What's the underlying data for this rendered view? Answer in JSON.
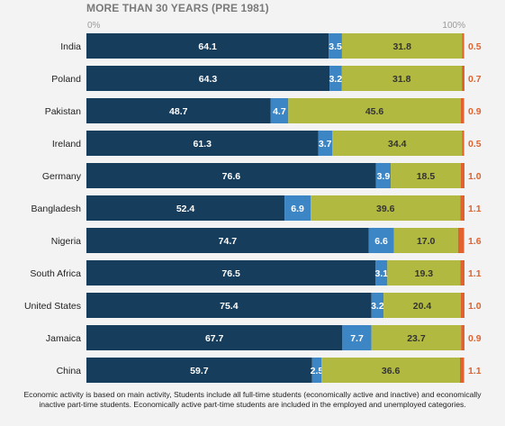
{
  "chart_data": {
    "type": "bar",
    "stacked": true,
    "orientation": "horizontal",
    "title": "MORE THAN 30 YEARS (PRE 1981)",
    "axis_min_label": "0%",
    "axis_max_label": "100%",
    "xlim": [
      0,
      100
    ],
    "legend": "none",
    "categories": [
      "India",
      "Poland",
      "Pakistan",
      "Ireland",
      "Germany",
      "Bangladesh",
      "Nigeria",
      "South Africa",
      "United States",
      "Jamaica",
      "China"
    ],
    "series": [
      {
        "color": "#173d5c",
        "label_color": "#ffffff",
        "values": [
          64.1,
          64.3,
          48.7,
          61.3,
          76.6,
          52.4,
          74.7,
          76.5,
          75.4,
          67.7,
          59.7
        ],
        "labels": [
          "64.1",
          "64.3",
          "48.7",
          "61.3",
          "76.6",
          "52.4",
          "74.7",
          "76.5",
          "75.4",
          "67.7",
          "59.7"
        ]
      },
      {
        "color": "#3d86c6",
        "label_color": "#ffffff",
        "values": [
          3.5,
          3.2,
          4.7,
          3.7,
          3.9,
          6.9,
          6.6,
          3.1,
          3.2,
          7.7,
          2.5
        ],
        "labels": [
          "3.5",
          "3.2",
          "4.7",
          "3.7",
          "3.9",
          "6.9",
          "6.6",
          "3.1",
          "3.2",
          "7.7",
          "2.5"
        ]
      },
      {
        "color": "#b1b940",
        "label_color": "#333333",
        "values": [
          31.8,
          31.8,
          45.6,
          34.4,
          18.5,
          39.6,
          17.0,
          19.3,
          20.4,
          23.7,
          36.6
        ],
        "labels": [
          "31.8",
          "31.8",
          "45.6",
          "34.4",
          "18.5",
          "39.6",
          "17.0",
          "19.3",
          "20.4",
          "23.7",
          "36.6"
        ]
      },
      {
        "color": "#e0622f",
        "label_color": "#e0622f",
        "values": [
          0.5,
          0.7,
          0.9,
          0.5,
          1.0,
          1.1,
          1.6,
          1.1,
          1.0,
          0.9,
          1.1
        ],
        "labels": [
          "0.5",
          "0.7",
          "0.9",
          "0.5",
          "1.0",
          "1.1",
          "1.6",
          "1.1",
          "1.0",
          "0.9",
          "1.1"
        ]
      }
    ],
    "grid": false
  },
  "footnote": {
    "line1": "Economic activity is based on main activity, Students include all full-time students (economically active and inactive) and economically",
    "line2": "inactive part-time students. Economically active part-time students are included in the employed and unemployed categories."
  }
}
